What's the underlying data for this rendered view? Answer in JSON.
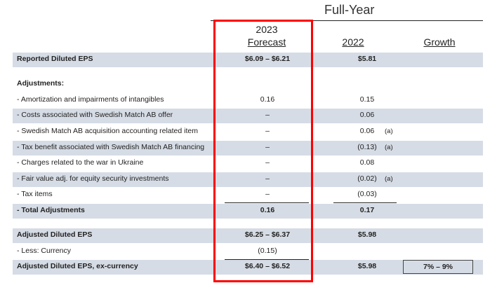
{
  "header": {
    "full_year": "Full-Year",
    "forecast_year": "2023",
    "forecast_label": "Forecast",
    "prior_year": "2022",
    "growth": "Growth"
  },
  "rows": [
    {
      "label": "Reported Diluted EPS",
      "forecast": "$6.09 – $6.21",
      "prior": "$5.81",
      "note": "",
      "bold": true,
      "shaded": true
    },
    {
      "label": "Adjustments:",
      "forecast": "",
      "prior": "",
      "note": "",
      "bold": true,
      "shaded": false
    },
    {
      "label": "- Amortization and impairments of intangibles",
      "forecast": "0.16",
      "prior": "0.15",
      "note": "",
      "bold": false,
      "shaded": false
    },
    {
      "label": "- Costs associated with Swedish Match AB offer",
      "forecast": "–",
      "prior": "0.06",
      "note": "",
      "bold": false,
      "shaded": true
    },
    {
      "label": "- Swedish Match AB acquisition accounting related item",
      "forecast": "–",
      "prior": "0.06",
      "note": "(a)",
      "bold": false,
      "shaded": false
    },
    {
      "label": "- Tax benefit associated with Swedish Match AB financing",
      "forecast": "–",
      "prior": "(0.13)",
      "note": "(a)",
      "bold": false,
      "shaded": true
    },
    {
      "label": "- Charges related to the war in Ukraine",
      "forecast": "–",
      "prior": "0.08",
      "note": "",
      "bold": false,
      "shaded": false
    },
    {
      "label": "- Fair value adj. for equity security investments",
      "forecast": "–",
      "prior": "(0.02)",
      "note": "(a)",
      "bold": false,
      "shaded": true
    },
    {
      "label": "- Tax items",
      "forecast": "–",
      "prior": "(0.03)",
      "note": "",
      "bold": false,
      "shaded": false
    },
    {
      "label": "- Total Adjustments",
      "forecast": "0.16",
      "prior": "0.17",
      "note": "",
      "bold": true,
      "shaded": true
    },
    {
      "label": "Adjusted Diluted EPS",
      "forecast": "$6.25 – $6.37",
      "prior": "$5.98",
      "note": "",
      "bold": true,
      "shaded": true
    },
    {
      "label": "- Less: Currency",
      "forecast": "(0.15)",
      "prior": "",
      "note": "",
      "bold": false,
      "shaded": false
    },
    {
      "label": "Adjusted Diluted EPS, ex-currency",
      "forecast": "$6.40 – $6.52",
      "prior": "$5.98",
      "note": "",
      "bold": true,
      "shaded": true
    }
  ],
  "growth_value": "7% – 9%",
  "highlight_color": "#ff0000",
  "shade_color": "#d6dce5"
}
